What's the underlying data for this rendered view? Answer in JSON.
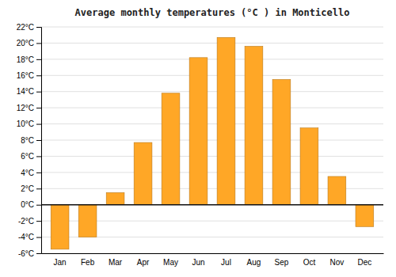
{
  "chart_data": {
    "type": "bar",
    "title": "Average monthly temperatures (°C ) in Monticello",
    "categories": [
      "Jan",
      "Feb",
      "Mar",
      "Apr",
      "May",
      "Jun",
      "Jul",
      "Aug",
      "Sep",
      "Oct",
      "Nov",
      "Dec"
    ],
    "values": [
      -5.5,
      -4.0,
      1.5,
      7.7,
      13.8,
      18.2,
      20.7,
      19.6,
      15.5,
      9.5,
      3.5,
      -2.7
    ],
    "color": "#FFA726",
    "ylim": [
      -6,
      22
    ],
    "yticks": [
      {
        "value": -6,
        "label": "-6°C"
      },
      {
        "value": -4,
        "label": "-4°C"
      },
      {
        "value": -2,
        "label": "-2°C"
      },
      {
        "value": 0,
        "label": "0°C"
      },
      {
        "value": 2,
        "label": "2°C"
      },
      {
        "value": 4,
        "label": "4°C"
      },
      {
        "value": 6,
        "label": "6°C"
      },
      {
        "value": 8,
        "label": "8°C"
      },
      {
        "value": 10,
        "label": "10°C"
      },
      {
        "value": 12,
        "label": "12°C"
      },
      {
        "value": 14,
        "label": "14°C"
      },
      {
        "value": 16,
        "label": "16°C"
      },
      {
        "value": 18,
        "label": "18°C"
      },
      {
        "value": 20,
        "label": "20°C"
      },
      {
        "value": 22,
        "label": "22°C"
      }
    ],
    "grid": true
  }
}
